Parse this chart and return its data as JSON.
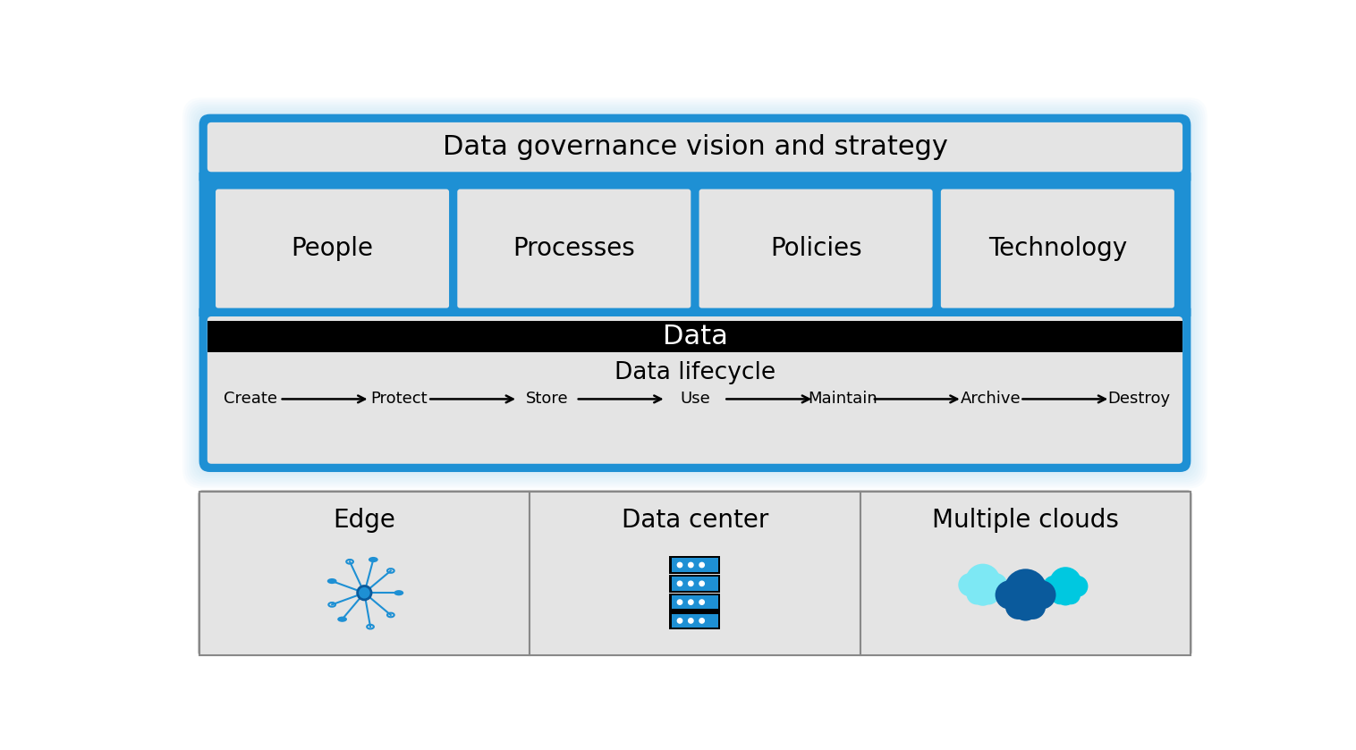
{
  "bg_color": "#ffffff",
  "blue_border": "#1e90d4",
  "light_gray": "#e4e4e4",
  "black": "#000000",
  "white": "#ffffff",
  "title_text": "Data governance vision and strategy",
  "pillars": [
    "People",
    "Processes",
    "Policies",
    "Technology"
  ],
  "data_bar_text": "Data",
  "lifecycle_title": "Data lifecycle",
  "lifecycle_steps": [
    "Create",
    "Protect",
    "Store",
    "Use",
    "Maintain",
    "Archive",
    "Destroy"
  ],
  "bottom_sections": [
    "Edge",
    "Data center",
    "Multiple clouds"
  ],
  "blue_light": "#1e90d4",
  "blue_dark": "#0a5a9c",
  "cyan_light": "#7de8f4",
  "cyan_mid": "#00c8e0",
  "glow_color": "#a8d8f8"
}
